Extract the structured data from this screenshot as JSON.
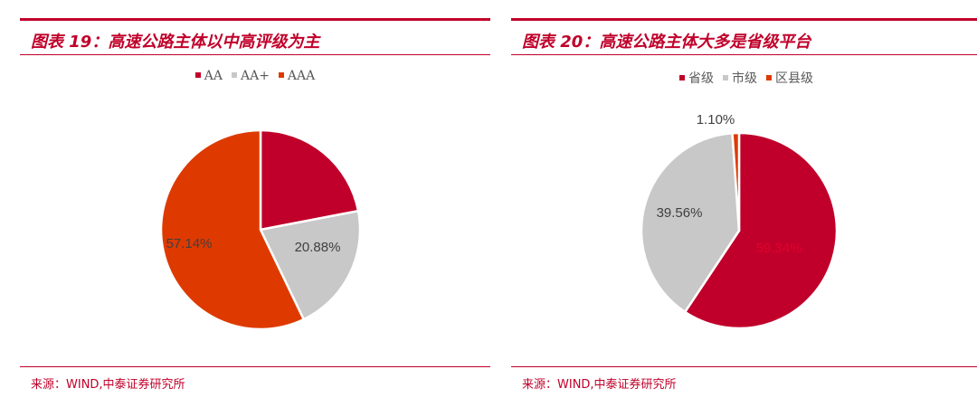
{
  "panels": [
    {
      "title": "图表 19：高速公路主体以中高评级为主",
      "source": "来源：WIND,中泰证券研究所",
      "chart_data": {
        "type": "pie",
        "title": "图表 19：高速公路主体以中高评级为主",
        "legend_position": "top",
        "start_angle_deg": 0,
        "direction": "clockwise",
        "slices": [
          {
            "name": "AA",
            "value": 21.98,
            "label": "21.98%",
            "color": "#c0002a",
            "label_color": "#c0002a"
          },
          {
            "name": "AA+",
            "value": 20.88,
            "label": "20.88%",
            "color": "#c8c8c8",
            "label_color": "#404040"
          },
          {
            "name": "AAA",
            "value": 57.14,
            "label": "57.14%",
            "color": "#de3a00",
            "label_color": "#404040"
          }
        ]
      }
    },
    {
      "title": "图表 20：高速公路主体大多是省级平台",
      "source": "来源：WIND,中泰证券研究所",
      "chart_data": {
        "type": "pie",
        "title": "图表 20：高速公路主体大多是省级平台",
        "legend_position": "top",
        "start_angle_deg": 0,
        "direction": "clockwise",
        "slices": [
          {
            "name": "省级",
            "value": 59.34,
            "label": "59.34%",
            "color": "#c0002a",
            "label_color": "#e2002e"
          },
          {
            "name": "市级",
            "value": 39.56,
            "label": "39.56%",
            "color": "#c8c8c8",
            "label_color": "#404040"
          },
          {
            "name": "区县级",
            "value": 1.1,
            "label": "1.10%",
            "color": "#de3a00",
            "label_color": "#404040"
          }
        ]
      }
    }
  ]
}
